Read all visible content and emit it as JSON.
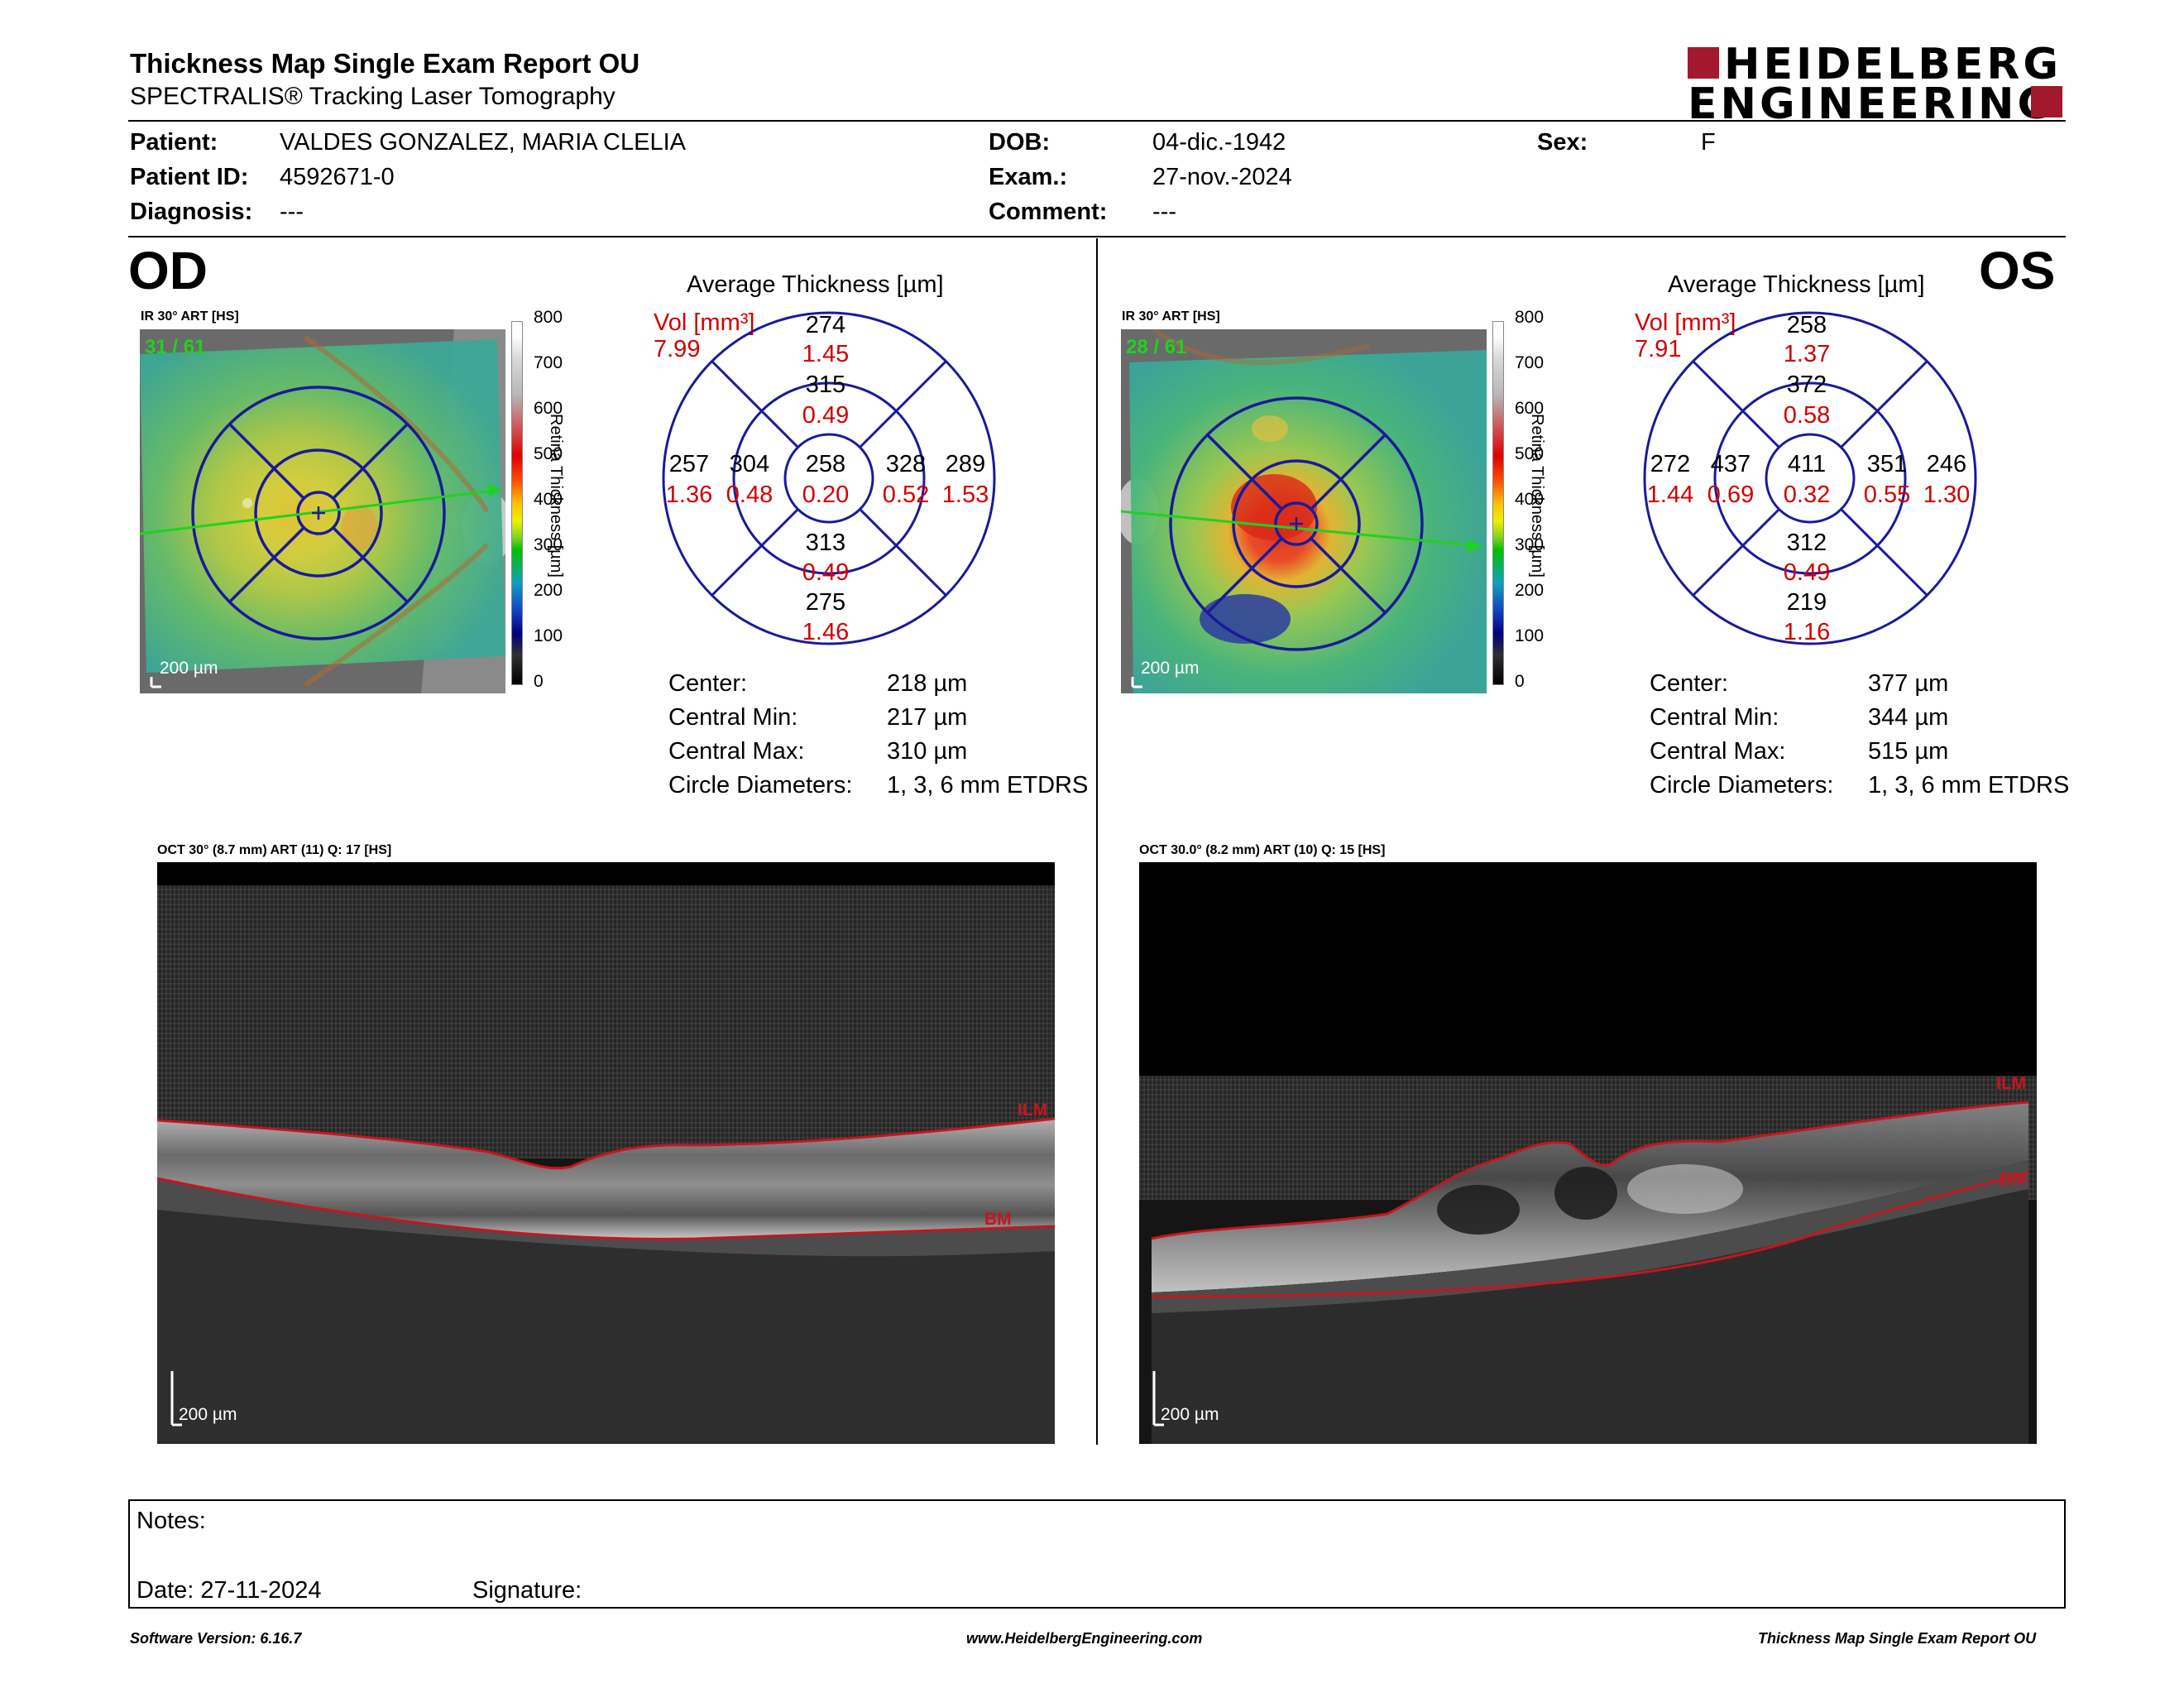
{
  "header": {
    "title": "Thickness Map Single Exam Report OU",
    "subtitle": "SPECTRALIS® Tracking Laser Tomography",
    "logo_line1": "HEIDELBERG",
    "logo_line2": "ENGINEERING"
  },
  "patient": {
    "patient_label": "Patient:",
    "patient_value": "VALDES GONZALEZ, MARIA CLELIA",
    "id_label": "Patient ID:",
    "id_value": "4592671-0",
    "diagnosis_label": "Diagnosis:",
    "diagnosis_value": "---",
    "dob_label": "DOB:",
    "dob_value": "04-dic.-1942",
    "exam_label": "Exam.:",
    "exam_value": "27-nov.-2024",
    "comment_label": "Comment:",
    "comment_value": "---",
    "sex_label": "Sex:",
    "sex_value": "F"
  },
  "colors": {
    "grid_blue": "#1a1a9a",
    "vol_red": "#d00000",
    "scan_green": "#1fd21f",
    "boundary_red": "#c8141e",
    "logo_red": "#a3182c"
  },
  "legend": {
    "ticks": [
      "800",
      "700",
      "600",
      "500",
      "400",
      "300",
      "200",
      "100",
      "0"
    ],
    "label": "Retina Thickness [µm]"
  },
  "od": {
    "eye_label": "OD",
    "ir_label": "IR 30° ART [HS]",
    "frame_label": "31 / 61",
    "scale_label": "200 µm",
    "avg_title": "Average Thickness [µm]",
    "vol_label": "Vol [mm³]",
    "vol_total": "7.99",
    "sectors": {
      "center": {
        "t": "258",
        "v": "0.20"
      },
      "inner_sup": {
        "t": "315",
        "v": "0.49"
      },
      "inner_inf": {
        "t": "313",
        "v": "0.49"
      },
      "inner_left": {
        "t": "304",
        "v": "0.48"
      },
      "inner_right": {
        "t": "328",
        "v": "0.52"
      },
      "outer_sup": {
        "t": "274",
        "v": "1.45"
      },
      "outer_inf": {
        "t": "275",
        "v": "1.46"
      },
      "outer_left": {
        "t": "257",
        "v": "1.36"
      },
      "outer_right": {
        "t": "289",
        "v": "1.53"
      }
    },
    "stats": [
      {
        "label": "Center:",
        "value": "218 µm"
      },
      {
        "label": "Central Min:",
        "value": "217 µm"
      },
      {
        "label": "Central Max:",
        "value": "310 µm"
      },
      {
        "label": "Circle Diameters:",
        "value": "1, 3, 6 mm ETDRS"
      }
    ],
    "oct_label": "OCT 30° (8.7 mm) ART (11) Q: 17 [HS]",
    "oct_scale": "200 µm",
    "ilm": "ILM",
    "bm": "BM"
  },
  "os": {
    "eye_label": "OS",
    "ir_label": "IR 30° ART [HS]",
    "frame_label": "28 / 61",
    "scale_label": "200 µm",
    "avg_title": "Average Thickness [µm]",
    "vol_label": "Vol [mm³]",
    "vol_total": "7.91",
    "sectors": {
      "center": {
        "t": "411",
        "v": "0.32"
      },
      "inner_sup": {
        "t": "372",
        "v": "0.58"
      },
      "inner_inf": {
        "t": "312",
        "v": "0.49"
      },
      "inner_left": {
        "t": "437",
        "v": "0.69"
      },
      "inner_right": {
        "t": "351",
        "v": "0.55"
      },
      "outer_sup": {
        "t": "258",
        "v": "1.37"
      },
      "outer_inf": {
        "t": "219",
        "v": "1.16"
      },
      "outer_left": {
        "t": "272",
        "v": "1.44"
      },
      "outer_right": {
        "t": "246",
        "v": "1.30"
      }
    },
    "stats": [
      {
        "label": "Center:",
        "value": "377 µm"
      },
      {
        "label": "Central Min:",
        "value": "344 µm"
      },
      {
        "label": "Central Max:",
        "value": "515 µm"
      },
      {
        "label": "Circle Diameters:",
        "value": "1, 3, 6 mm ETDRS"
      }
    ],
    "oct_label": "OCT 30.0° (8.2 mm) ART (10) Q: 15 [HS]",
    "oct_scale": "200 µm",
    "ilm": "ILM",
    "bm": "BM"
  },
  "notes": {
    "notes_label": "Notes:",
    "date_label": "Date: 27-11-2024",
    "signature_label": "Signature:"
  },
  "footer": {
    "software": "Software Version: 6.16.7",
    "website": "www.HeidelbergEngineering.com",
    "report": "Thickness Map Single Exam Report OU"
  }
}
